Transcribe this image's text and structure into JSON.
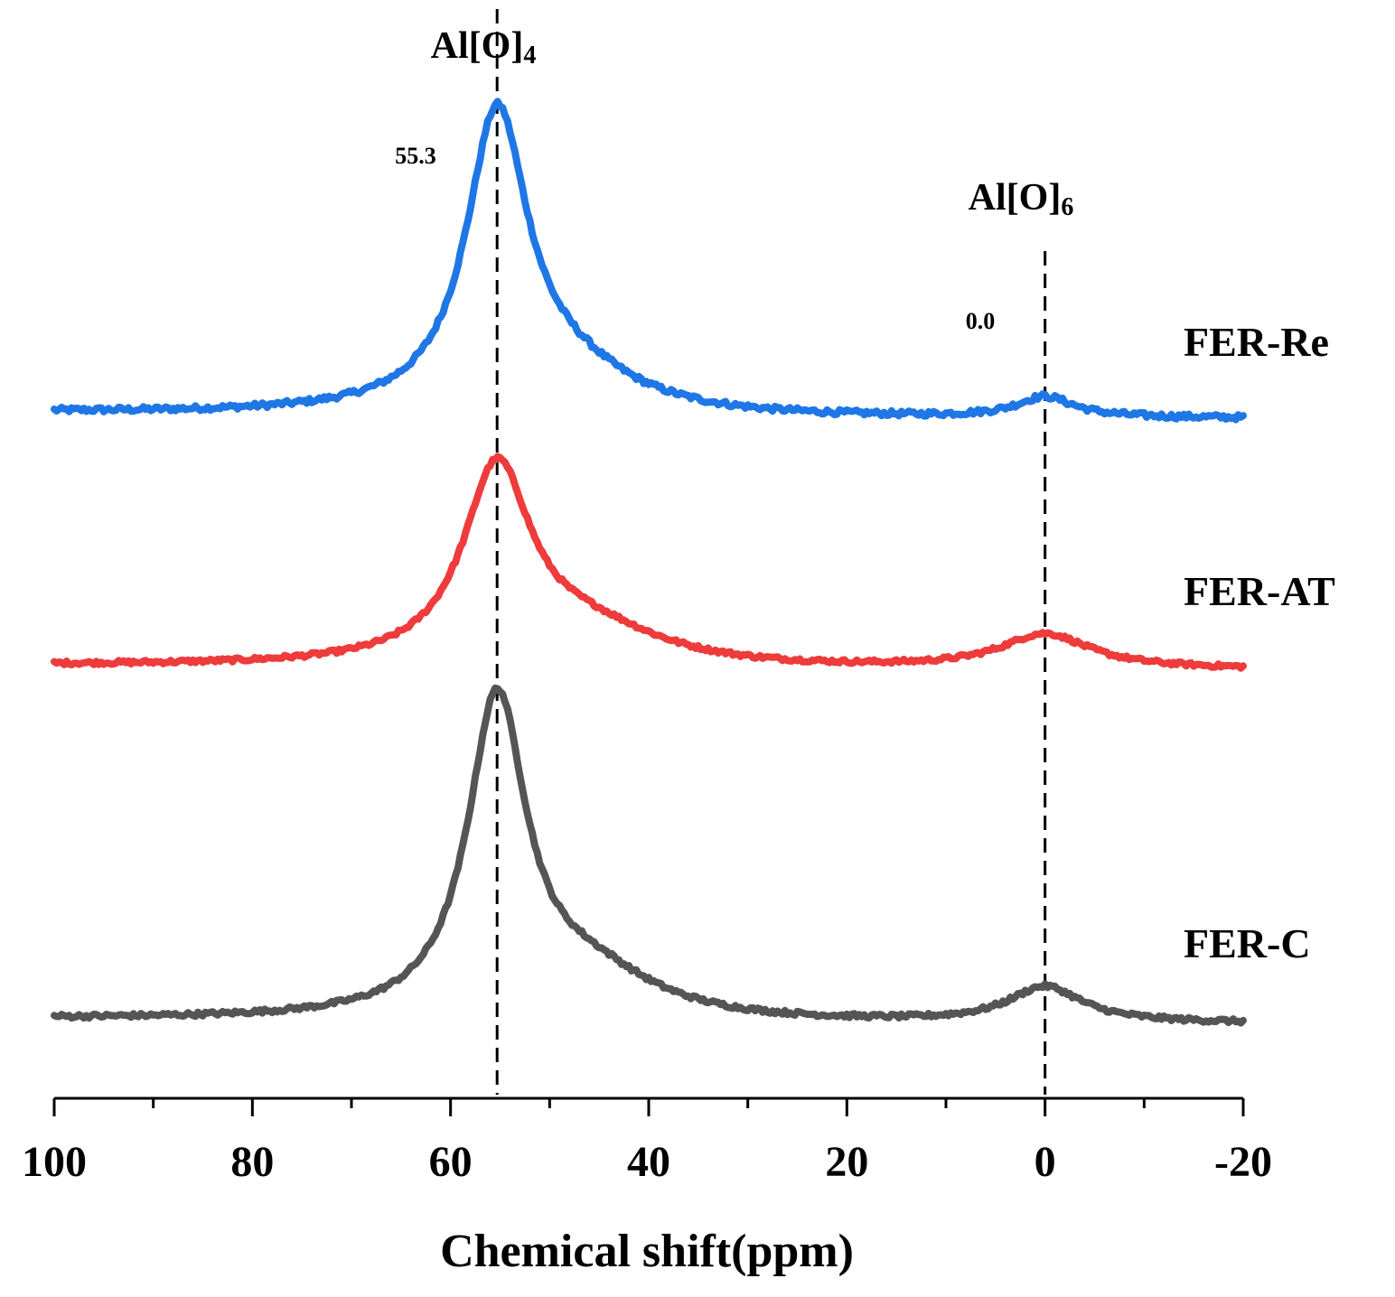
{
  "chart_data": {
    "type": "line",
    "title": "",
    "xlabel": "Chemical shift(ppm)",
    "ylabel": "",
    "xlim": [
      100,
      -20
    ],
    "x_ticks": [
      {
        "value": 100,
        "label": "100"
      },
      {
        "value": 80,
        "label": "80"
      },
      {
        "value": 60,
        "label": "60"
      },
      {
        "value": 40,
        "label": "40"
      },
      {
        "value": 20,
        "label": "20"
      },
      {
        "value": 0,
        "label": "0"
      },
      {
        "value": -20,
        "label": "-20"
      }
    ],
    "minor_tick_values": [
      90,
      70,
      50,
      30,
      10,
      -10
    ],
    "y_axis_visible": false,
    "grid": false,
    "reference_lines": [
      {
        "name": "Al[O]4",
        "x": 55.3,
        "style": "dashed",
        "position_label": "55.3"
      },
      {
        "name": "Al[O]6",
        "x": 0.0,
        "style": "dashed",
        "position_label": "0.0"
      }
    ],
    "peak_annotations": [
      {
        "base": "Al[O]",
        "sub": "4"
      },
      {
        "base": "Al[O]",
        "sub": "6"
      }
    ],
    "series": [
      {
        "name": "FER-Re",
        "label": "FER-Re",
        "color": "#1f77e6",
        "offset": 2.2,
        "peak_main": {
          "center": 55.3,
          "height": 1.0,
          "width": 3.8
        },
        "peak_shoulder": {
          "center": 48,
          "height": 0.12,
          "width": 8
        },
        "peak_minor": {
          "center": 0.0,
          "height": 0.07,
          "width": 3.5
        },
        "values_approx": [
          {
            "x": 100,
            "y": 0.0
          },
          {
            "x": 80,
            "y": 0.02
          },
          {
            "x": 65,
            "y": 0.12
          },
          {
            "x": 60,
            "y": 0.28
          },
          {
            "x": 55.3,
            "y": 1.0
          },
          {
            "x": 50,
            "y": 0.45
          },
          {
            "x": 45,
            "y": 0.12
          },
          {
            "x": 40,
            "y": 0.05
          },
          {
            "x": 20,
            "y": 0.0
          },
          {
            "x": 5,
            "y": 0.01
          },
          {
            "x": 0,
            "y": 0.07
          },
          {
            "x": -10,
            "y": 0.02
          },
          {
            "x": -20,
            "y": 0.0
          }
        ]
      },
      {
        "name": "FER-AT",
        "label": "FER-AT",
        "color": "#ee3b3b",
        "offset": 1.1,
        "peak_main": {
          "center": 55.3,
          "height": 0.9,
          "width": 4.2
        },
        "peak_shoulder": {
          "center": 46,
          "height": 0.16,
          "width": 9
        },
        "peak_minor": {
          "center": 0.0,
          "height": 0.16,
          "width": 5.5
        },
        "values_approx": [
          {
            "x": 100,
            "y": 0.0
          },
          {
            "x": 80,
            "y": 0.03
          },
          {
            "x": 65,
            "y": 0.13
          },
          {
            "x": 60,
            "y": 0.28
          },
          {
            "x": 55.3,
            "y": 0.9
          },
          {
            "x": 50,
            "y": 0.45
          },
          {
            "x": 45,
            "y": 0.16
          },
          {
            "x": 40,
            "y": 0.1
          },
          {
            "x": 20,
            "y": 0.03
          },
          {
            "x": 5,
            "y": 0.06
          },
          {
            "x": 0,
            "y": 0.16
          },
          {
            "x": -10,
            "y": 0.06
          },
          {
            "x": -20,
            "y": 0.0
          }
        ]
      },
      {
        "name": "FER-C",
        "label": "FER-C",
        "color": "#555555",
        "offset": 0.0,
        "peak_main": {
          "center": 55.3,
          "height": 1.33,
          "width": 3.6
        },
        "peak_shoulder": {
          "center": 46,
          "height": 0.18,
          "width": 8
        },
        "peak_minor": {
          "center": 0.0,
          "height": 0.15,
          "width": 4.5
        },
        "values_approx": [
          {
            "x": 100,
            "y": 0.0
          },
          {
            "x": 80,
            "y": 0.01
          },
          {
            "x": 65,
            "y": 0.08
          },
          {
            "x": 60,
            "y": 0.25
          },
          {
            "x": 55.3,
            "y": 1.33
          },
          {
            "x": 50,
            "y": 0.55
          },
          {
            "x": 45,
            "y": 0.2
          },
          {
            "x": 40,
            "y": 0.1
          },
          {
            "x": 20,
            "y": 0.01
          },
          {
            "x": 5,
            "y": 0.03
          },
          {
            "x": 0,
            "y": 0.15
          },
          {
            "x": -10,
            "y": 0.04
          },
          {
            "x": -20,
            "y": 0.0
          }
        ]
      }
    ]
  }
}
